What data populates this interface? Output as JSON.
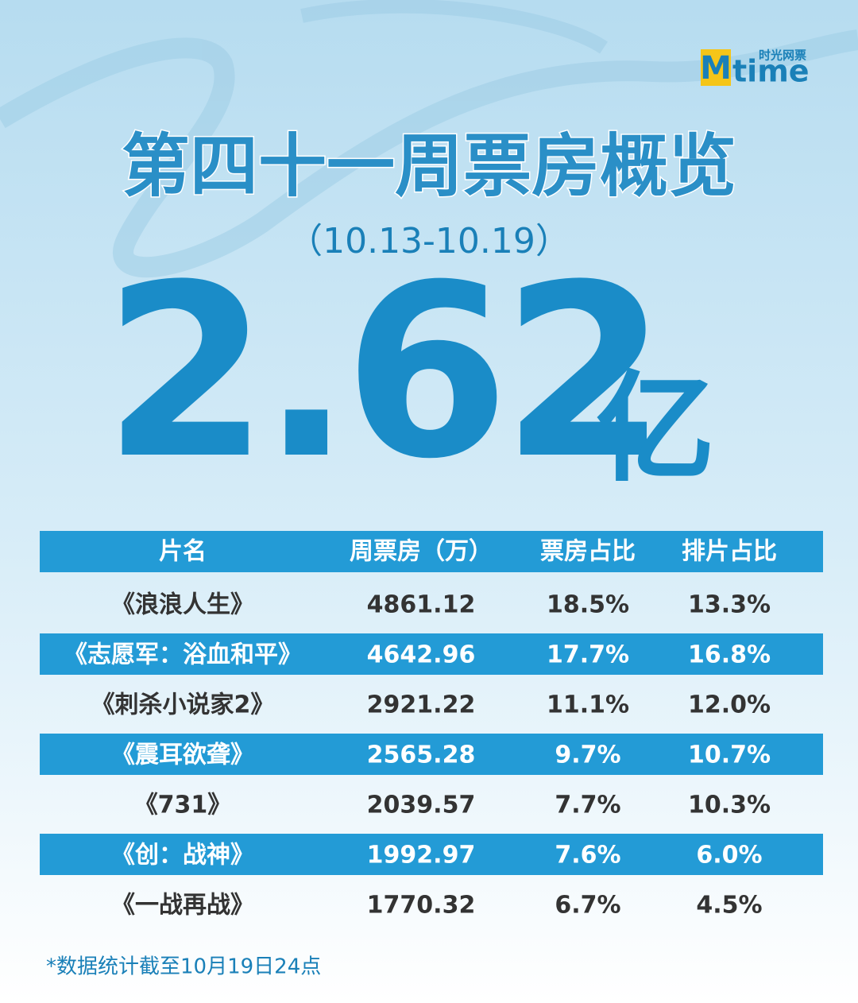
{
  "logo": {
    "mark": "M",
    "word": "time",
    "tagline": "时光网票"
  },
  "header": {
    "title": "第四十一周票房概览",
    "period": "（10.13-10.19）",
    "total": "2.62",
    "unit": "亿"
  },
  "table": {
    "columns": [
      "片名",
      "周票房（万）",
      "票房占比",
      "排片占比"
    ],
    "rows": [
      [
        "《浪浪人生》",
        "4861.12",
        "18.5%",
        "13.3%"
      ],
      [
        "《志愿军：浴血和平》",
        "4642.96",
        "17.7%",
        "16.8%"
      ],
      [
        "《刺杀小说家2》",
        "2921.22",
        "11.1%",
        "12.0%"
      ],
      [
        "《震耳欲聋》",
        "2565.28",
        "9.7%",
        "10.7%"
      ],
      [
        "《731》",
        "2039.57",
        "7.7%",
        "10.3%"
      ],
      [
        "《创：战神》",
        "1992.97",
        "7.6%",
        "6.0%"
      ],
      [
        "《一战再战》",
        "1770.32",
        "6.7%",
        "4.5%"
      ]
    ]
  },
  "footnote": "*数据统计截至10月19日24点"
}
